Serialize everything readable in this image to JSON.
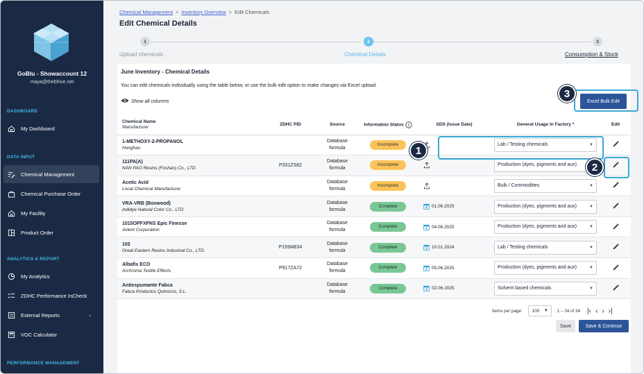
{
  "sidebar": {
    "account_name": "GoBlu - Showaccount 12",
    "account_email": "maya@thebhive.net",
    "sections": {
      "dashboard": "DASHBOARD",
      "data_input": "DATA INPUT",
      "analytics": "ANALYTICS & REPORT",
      "performance": "PERFORMANCE MANAGEMENT"
    },
    "items": [
      {
        "label": "My Dashboard",
        "icon": "home-icon"
      },
      {
        "label": "Chemical Management",
        "icon": "list-edit-icon",
        "active": true
      },
      {
        "label": "Chemical Purchase Order",
        "icon": "bag-icon"
      },
      {
        "label": "My Facility",
        "icon": "home-icon"
      },
      {
        "label": "Product Order",
        "icon": "order-icon"
      },
      {
        "label": "My Analytics",
        "icon": "pie-icon"
      },
      {
        "label": "ZDHC Performance InCheck",
        "icon": "checklist-icon"
      },
      {
        "label": "External Reports",
        "icon": "report-icon"
      },
      {
        "label": "VOC Calculator",
        "icon": "calculator-icon"
      }
    ]
  },
  "breadcrumb": {
    "items": [
      "Chemical Management",
      "Inventory Overview",
      "Edit Chemicals"
    ],
    "separator": ">"
  },
  "page_title": "Edit Chemical Details",
  "stepper": {
    "steps": [
      {
        "number": "1",
        "label": "Upload chemicals",
        "state": "done"
      },
      {
        "number": "2",
        "label": "Chemical Details",
        "state": "active"
      },
      {
        "number": "3",
        "label": "Consumption & Stock",
        "state": "upcoming"
      }
    ]
  },
  "card": {
    "title": "June Inventory - Chemical Details",
    "description": "You can edit chemicals individually using the table below, or use the bulk edit option to make changes via Excel upload.",
    "show_columns": "Show all columns",
    "excel_button": "Excel Bulk Edit"
  },
  "table": {
    "headers": {
      "chemical_name": "Chemical Name",
      "manufacturer": "Manufacturer",
      "zdhc_pid": "ZDHC PID",
      "source": "Source",
      "info_status": "Information Status",
      "sds": "SDS (Issue Date)",
      "usage": "General Usage in Factory *",
      "edit": "Edit"
    },
    "rows": [
      {
        "name": "1-METHOXY-2-PROPANOL",
        "manufacturer": "Honghao",
        "pid": "",
        "source1": "Database",
        "source2": "formula",
        "status": "Incomplete",
        "sds": "",
        "usage": "Lab / Testing chemicals"
      },
      {
        "name": "111PA(A)",
        "manufacturer": "NAN PAO Resins (Foshan) Co., LTD.",
        "pid": "P331ZS82",
        "source1": "Database",
        "source2": "formula",
        "status": "Incomplete",
        "sds": "",
        "usage": "Production (dyes, pigments and aux)"
      },
      {
        "name": "Acetic Acid",
        "manufacturer": "Local Chemical Manufacturer",
        "pid": "",
        "source1": "Database",
        "source2": "formula",
        "status": "Incomplete",
        "sds": "",
        "usage": "Bulk / Commodities"
      },
      {
        "name": "VRA-VRB (Boxwood)",
        "manufacturer": "Indidye Natural Color Co., LTD",
        "pid": "",
        "source1": "Database",
        "source2": "formula",
        "status": "Complete",
        "sds": "01.06.2025",
        "usage": "Production (dyes, pigments and aux)"
      },
      {
        "name": "1015OPFXFNS Epic Finesse",
        "manufacturer": "Avient Corporation",
        "pid": "",
        "source1": "Database",
        "source2": "formula",
        "status": "Complete",
        "sds": "04.06.2025",
        "usage": "Production (dyes, pigments and aux)"
      },
      {
        "name": "102",
        "manufacturer": "Great Eastern Resins Industrial Co., LTD.",
        "pid": "P159AB34",
        "source1": "Database",
        "source2": "formula",
        "status": "Complete",
        "sds": "10.01.2024",
        "usage": "Lab / Testing chemicals"
      },
      {
        "name": "Albafix ECO",
        "manufacturer": "Archroma Textile Effects",
        "pid": "P917ZA72",
        "source1": "Database",
        "source2": "formula",
        "status": "Complete",
        "sds": "05.06.2025",
        "usage": "Production (dyes, pigments and aux)"
      },
      {
        "name": "Antiespumante Fabca",
        "manufacturer": "Fabca Productos Quimicos, S.L.",
        "pid": "",
        "source1": "Database",
        "source2": "formula",
        "status": "Complete",
        "sds": "02.06.2025",
        "usage": "Solvent based chemicals"
      }
    ]
  },
  "pagination": {
    "label": "Items per page:",
    "per_page": "100",
    "range": "1 – 34 of 34"
  },
  "buttons": {
    "save": "Save",
    "save_continue": "Save & Continue"
  },
  "callouts": [
    "1",
    "2",
    "3"
  ],
  "colors": {
    "sidebar_bg": "#1b2a44",
    "accent_blue": "#2d5499",
    "step_active": "#6fc2ef",
    "incomplete": "#fbc45a",
    "complete": "#79c795",
    "callout_border": "#3aa7d6"
  }
}
